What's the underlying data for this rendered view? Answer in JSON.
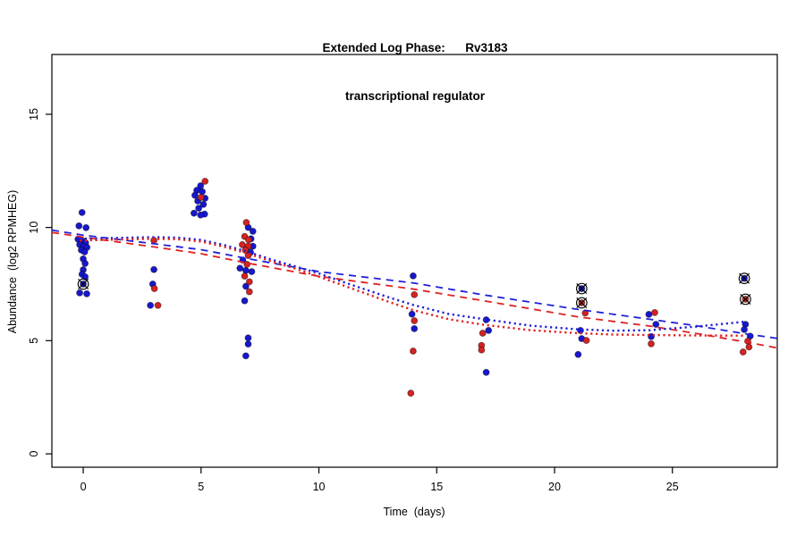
{
  "title": {
    "line1": "Extended Log Phase:      Rv3183",
    "line2": "transcriptional regulator"
  },
  "axes": {
    "xlabel": "Time  (days)",
    "ylabel": "Abundance  (log2 RPMHEG)",
    "x_ticks": [
      0,
      5,
      10,
      15,
      20,
      25
    ],
    "y_ticks": [
      0,
      5,
      10,
      15
    ],
    "x_range": [
      -1.33,
      29.45
    ],
    "y_range": [
      -0.59,
      17.64
    ]
  },
  "colors": {
    "blue": "#1717CF",
    "red": "#D42222",
    "flag_outline": "#000000",
    "axis": "#000000"
  },
  "chart_data": {
    "type": "scatter",
    "title": "Extended Log Phase: Rv3183 transcriptional regulator",
    "xlabel": "Time (days)",
    "ylabel": "Abundance (log2 RPMHEG)",
    "xlim": [
      -1.33,
      29.45
    ],
    "ylim": [
      -0.59,
      17.64
    ],
    "grid": false,
    "legend": "none",
    "series": [
      {
        "name": "blue-replicates",
        "kind": "points",
        "marker": "dot",
        "color": "#1717CF",
        "points": [
          [
            -0.05,
            10.66
          ],
          [
            -0.18,
            10.07
          ],
          [
            0.12,
            9.99
          ],
          [
            -0.22,
            9.48
          ],
          [
            -0.02,
            9.4
          ],
          [
            0.1,
            9.32
          ],
          [
            -0.15,
            9.24
          ],
          [
            0.02,
            9.16
          ],
          [
            0.16,
            9.12
          ],
          [
            -0.08,
            9.0
          ],
          [
            0.06,
            8.92
          ],
          [
            0.0,
            8.61
          ],
          [
            0.08,
            8.41
          ],
          [
            0.0,
            8.13
          ],
          [
            -0.05,
            7.93
          ],
          [
            0.08,
            7.82
          ],
          [
            -0.15,
            7.11
          ],
          [
            0.15,
            7.07
          ],
          [
            3.0,
            8.14
          ],
          [
            2.95,
            7.5
          ],
          [
            2.85,
            6.56
          ],
          [
            4.98,
            11.84
          ],
          [
            4.82,
            11.64
          ],
          [
            5.05,
            11.58
          ],
          [
            4.74,
            11.42
          ],
          [
            5.17,
            11.29
          ],
          [
            4.86,
            11.17
          ],
          [
            5.1,
            11.02
          ],
          [
            4.9,
            10.85
          ],
          [
            4.7,
            10.63
          ],
          [
            5.15,
            10.59
          ],
          [
            4.98,
            10.55
          ],
          [
            7.0,
            10.0
          ],
          [
            7.2,
            9.83
          ],
          [
            7.12,
            9.5
          ],
          [
            7.2,
            9.17
          ],
          [
            7.1,
            8.9
          ],
          [
            6.77,
            8.56
          ],
          [
            6.65,
            8.2
          ],
          [
            6.9,
            8.1
          ],
          [
            7.15,
            8.05
          ],
          [
            6.9,
            7.4
          ],
          [
            6.85,
            6.76
          ],
          [
            7.0,
            5.12
          ],
          [
            7.0,
            4.85
          ],
          [
            6.9,
            4.33
          ],
          [
            14.0,
            7.86
          ],
          [
            13.95,
            6.17
          ],
          [
            14.05,
            5.53
          ],
          [
            17.1,
            5.92
          ],
          [
            17.2,
            5.45
          ],
          [
            17.1,
            3.6
          ],
          [
            21.1,
            5.45
          ],
          [
            21.15,
            5.09
          ],
          [
            21.0,
            4.39
          ],
          [
            24.0,
            6.16
          ],
          [
            24.3,
            5.72
          ],
          [
            24.1,
            5.18
          ],
          [
            28.1,
            5.72
          ],
          [
            28.05,
            5.49
          ],
          [
            28.3,
            5.2
          ]
        ]
      },
      {
        "name": "red-replicates",
        "kind": "points",
        "marker": "dot",
        "color": "#D42222",
        "points": [
          [
            3.0,
            9.43
          ],
          [
            3.02,
            7.3
          ],
          [
            3.17,
            6.56
          ],
          [
            5.17,
            12.04
          ],
          [
            5.0,
            11.33
          ],
          [
            6.92,
            10.22
          ],
          [
            6.85,
            9.6
          ],
          [
            7.02,
            9.45
          ],
          [
            6.75,
            9.24
          ],
          [
            7.0,
            9.17
          ],
          [
            6.88,
            9.0
          ],
          [
            7.0,
            8.76
          ],
          [
            6.95,
            8.37
          ],
          [
            6.85,
            7.85
          ],
          [
            7.05,
            7.6
          ],
          [
            7.05,
            7.16
          ],
          [
            14.05,
            7.03
          ],
          [
            14.05,
            5.88
          ],
          [
            14.0,
            4.54
          ],
          [
            13.9,
            2.68
          ],
          [
            16.95,
            5.33
          ],
          [
            16.9,
            4.79
          ],
          [
            16.9,
            4.59
          ],
          [
            21.3,
            6.22
          ],
          [
            21.35,
            5.01
          ],
          [
            24.25,
            6.24
          ],
          [
            24.1,
            4.86
          ],
          [
            28.2,
            4.98
          ],
          [
            28.25,
            4.72
          ],
          [
            28.0,
            4.5
          ]
        ]
      },
      {
        "name": "blue-dashed-fit",
        "kind": "line",
        "style": "dashed",
        "color": "#2020D8",
        "points": [
          [
            -1.33,
            9.88
          ],
          [
            0,
            9.66
          ],
          [
            3,
            9.28
          ],
          [
            5,
            9.02
          ],
          [
            7,
            8.62
          ],
          [
            10,
            8.05
          ],
          [
            14,
            7.55
          ],
          [
            17,
            7.02
          ],
          [
            21,
            6.38
          ],
          [
            24,
            5.95
          ],
          [
            26,
            5.66
          ],
          [
            28,
            5.32
          ],
          [
            29.45,
            5.1
          ]
        ]
      },
      {
        "name": "red-dashed-fit",
        "kind": "line",
        "style": "dashed",
        "color": "#E02020",
        "points": [
          [
            -1.33,
            9.78
          ],
          [
            0,
            9.57
          ],
          [
            3,
            9.14
          ],
          [
            5,
            8.84
          ],
          [
            7,
            8.42
          ],
          [
            10,
            7.84
          ],
          [
            14,
            7.28
          ],
          [
            17,
            6.76
          ],
          [
            21,
            6.05
          ],
          [
            24,
            5.65
          ],
          [
            26,
            5.32
          ],
          [
            28,
            4.96
          ],
          [
            29.45,
            4.68
          ]
        ]
      },
      {
        "name": "blue-dotted-fit",
        "kind": "line",
        "style": "dotted",
        "color": "#2020D8",
        "points": [
          [
            -0.15,
            9.5
          ],
          [
            1.5,
            9.54
          ],
          [
            3,
            9.57
          ],
          [
            4,
            9.55
          ],
          [
            5,
            9.45
          ],
          [
            6,
            9.22
          ],
          [
            7,
            8.92
          ],
          [
            8,
            8.58
          ],
          [
            9,
            8.28
          ],
          [
            10,
            7.97
          ],
          [
            11,
            7.6
          ],
          [
            12,
            7.25
          ],
          [
            13,
            6.9
          ],
          [
            14,
            6.58
          ],
          [
            15.5,
            6.18
          ],
          [
            17,
            5.95
          ],
          [
            19,
            5.66
          ],
          [
            21,
            5.5
          ],
          [
            22.5,
            5.44
          ],
          [
            24,
            5.46
          ],
          [
            26,
            5.62
          ],
          [
            28.1,
            5.84
          ]
        ]
      },
      {
        "name": "red-dotted-fit",
        "kind": "line",
        "style": "dotted",
        "color": "#E02020",
        "points": [
          [
            -0.15,
            9.42
          ],
          [
            1.5,
            9.47
          ],
          [
            3,
            9.5
          ],
          [
            4,
            9.48
          ],
          [
            5,
            9.38
          ],
          [
            6,
            9.14
          ],
          [
            7,
            8.84
          ],
          [
            8,
            8.5
          ],
          [
            9,
            8.18
          ],
          [
            10,
            7.83
          ],
          [
            11,
            7.45
          ],
          [
            12,
            7.08
          ],
          [
            13,
            6.7
          ],
          [
            14,
            6.35
          ],
          [
            15.5,
            5.95
          ],
          [
            17,
            5.7
          ],
          [
            19,
            5.46
          ],
          [
            21,
            5.33
          ],
          [
            22.5,
            5.27
          ],
          [
            24,
            5.25
          ],
          [
            26,
            5.23
          ],
          [
            28.1,
            5.22
          ]
        ]
      },
      {
        "name": "blue-flagged-outliers",
        "kind": "points",
        "marker": "circle-cross",
        "color": "#1717CF",
        "points": [
          [
            0.0,
            7.5
          ],
          [
            21.15,
            7.3
          ],
          [
            28.05,
            7.75
          ]
        ]
      },
      {
        "name": "red-flagged-outliers",
        "kind": "points",
        "marker": "circle-cross",
        "color": "#D42222",
        "points": [
          [
            21.15,
            6.67
          ],
          [
            28.1,
            6.83
          ]
        ]
      }
    ]
  }
}
